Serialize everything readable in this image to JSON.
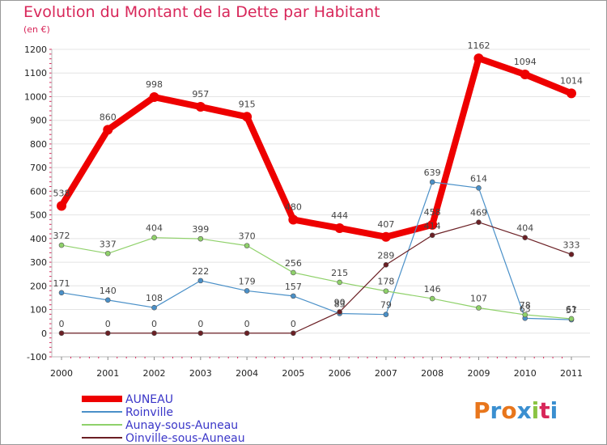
{
  "title": "Evolution du Montant de la Dette par Habitant",
  "unit": "(en €)",
  "logo": [
    "P",
    "r",
    "o",
    "x",
    "i",
    "t",
    "i"
  ],
  "logo_colors": [
    "#e8761c",
    "#3a8fd0",
    "#e8761c",
    "#3a8fd0",
    "#8ac443",
    "#d8275a",
    "#3a8fd0"
  ],
  "chart_data": {
    "type": "line",
    "categories": [
      "2000",
      "2001",
      "2002",
      "2003",
      "2004",
      "2005",
      "2006",
      "2007",
      "2008",
      "2009",
      "2010",
      "2011"
    ],
    "ylim": [
      -100,
      1200
    ],
    "yticks": [
      "-100",
      "0",
      "100",
      "200",
      "300",
      "400",
      "500",
      "600",
      "700",
      "800",
      "900",
      "1000",
      "1100",
      "1200"
    ],
    "grid": "horizontal",
    "legend_position": "bottom",
    "series": [
      {
        "name": "AUNEAU",
        "color": "#ee0000",
        "width": 8,
        "values": [
          538,
          860,
          998,
          957,
          915,
          480,
          444,
          407,
          458,
          1162,
          1094,
          1014
        ],
        "labels": [
          "538",
          "860",
          "998",
          "957",
          "915",
          "480",
          "444",
          "407",
          "458",
          "1162",
          "1094",
          "1014"
        ]
      },
      {
        "name": "Roinville",
        "color": "#4a90c8",
        "width": 1.2,
        "values": [
          171,
          140,
          108,
          222,
          179,
          157,
          83,
          79,
          639,
          614,
          63,
          57
        ],
        "labels": [
          "171",
          "140",
          "108",
          "222",
          "179",
          "157",
          "83",
          "79",
          "639",
          "614",
          "63",
          "57"
        ]
      },
      {
        "name": "Aunay-sous-Auneau",
        "color": "#8fd16a",
        "width": 1.2,
        "values": [
          372,
          337,
          404,
          399,
          370,
          256,
          215,
          178,
          146,
          107,
          78,
          61
        ],
        "labels": [
          "372",
          "337",
          "404",
          "399",
          "370",
          "256",
          "215",
          "178",
          "146",
          "107",
          "78",
          "61"
        ]
      },
      {
        "name": "Oinville-sous-Auneau",
        "color": "#6b1f24",
        "width": 1.2,
        "values": [
          0,
          0,
          0,
          0,
          0,
          0,
          90,
          289,
          414,
          469,
          404,
          333
        ],
        "labels": [
          "0",
          "0",
          "0",
          "0",
          "0",
          "0",
          "90",
          "289",
          "414",
          "469",
          "404",
          "333"
        ]
      }
    ]
  }
}
